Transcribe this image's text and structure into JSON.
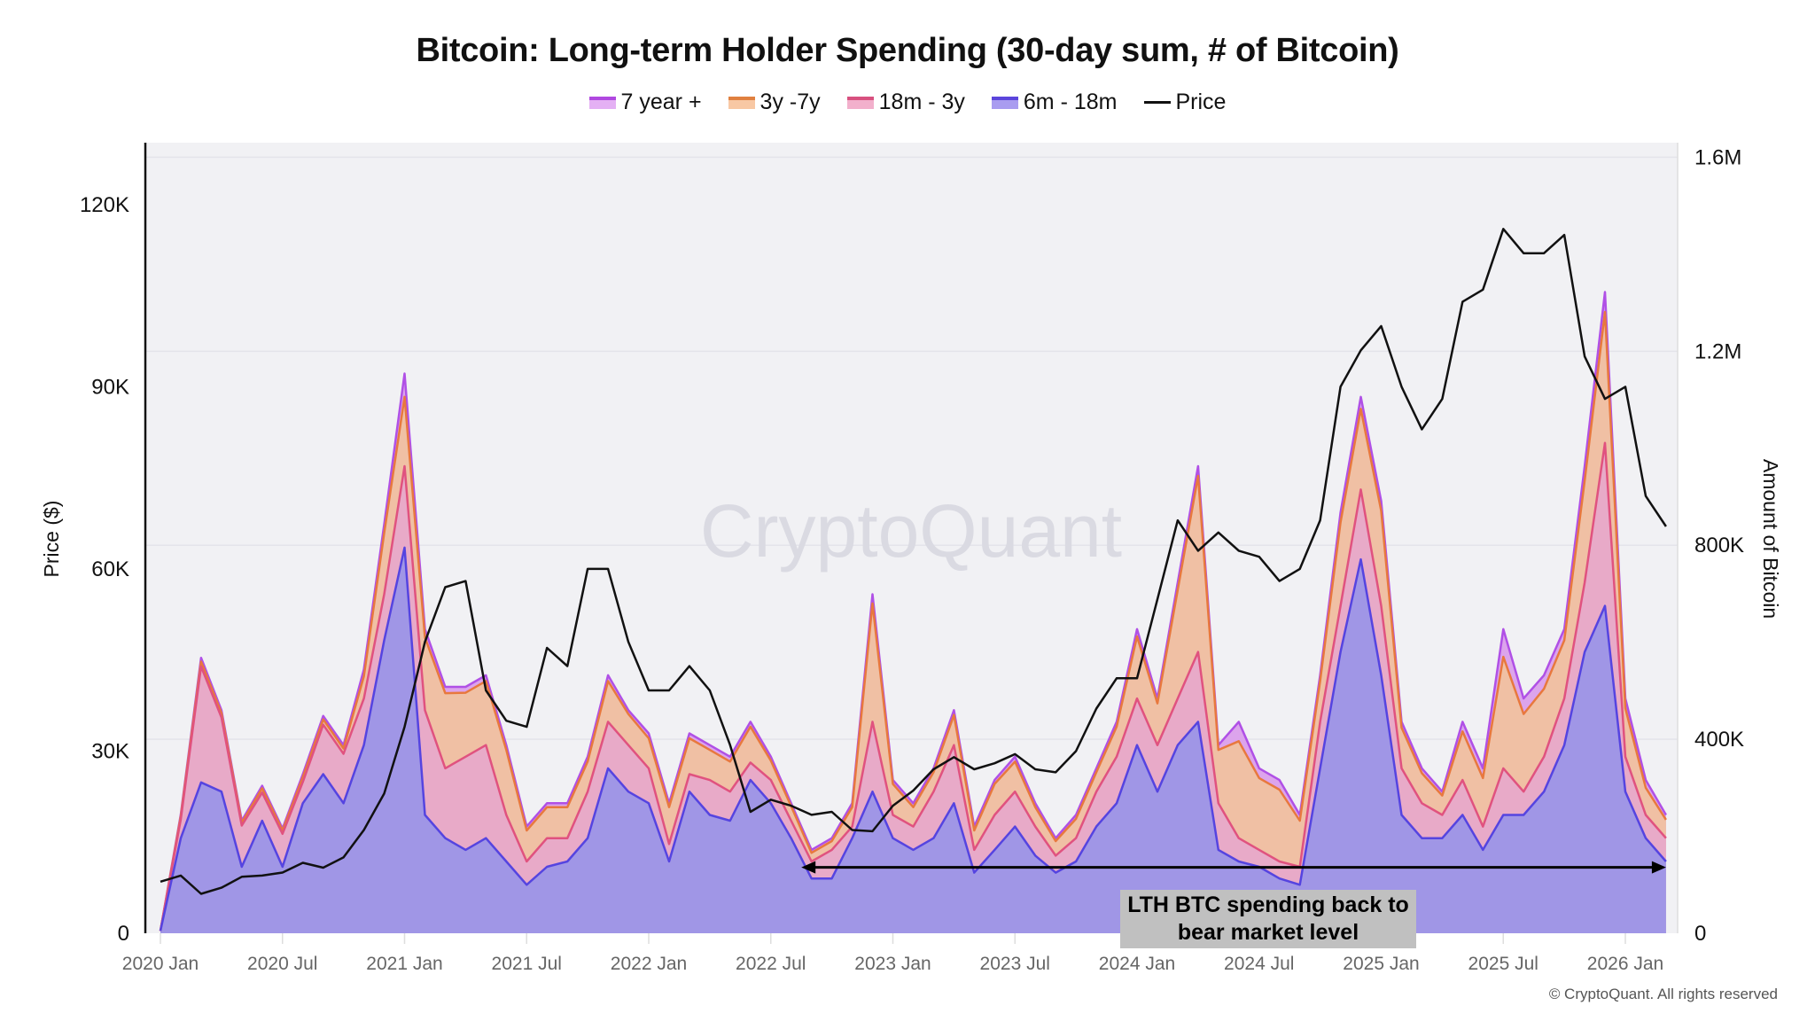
{
  "chart_data": {
    "type": "area",
    "title": "Bitcoin: Long-term Holder Spending (30-day sum, # of Bitcoin)",
    "x_start": "2020-01",
    "x_interval": "month",
    "x_ticks": [
      {
        "label": "2020 Jan",
        "month": 0
      },
      {
        "label": "2020 Jul",
        "month": 6
      },
      {
        "label": "2021 Jan",
        "month": 12
      },
      {
        "label": "2021 Jul",
        "month": 18
      },
      {
        "label": "2022 Jan",
        "month": 24
      },
      {
        "label": "2022 Jul",
        "month": 30
      },
      {
        "label": "2023 Jan",
        "month": 36
      },
      {
        "label": "2023 Jul",
        "month": 42
      },
      {
        "label": "2024 Jan",
        "month": 48
      },
      {
        "label": "2024 Jul",
        "month": 54
      },
      {
        "label": "2025 Jan",
        "month": 60
      },
      {
        "label": "2025 Jul",
        "month": 66
      },
      {
        "label": "2026 Jan",
        "month": 72
      }
    ],
    "ylabel_left": "Price ($)",
    "ylim_left": [
      0,
      130200
    ],
    "yticks_left": [
      {
        "value": 0,
        "label": "0"
      },
      {
        "value": 30000,
        "label": "30K"
      },
      {
        "value": 60000,
        "label": "60K"
      },
      {
        "value": 90000,
        "label": "90K"
      },
      {
        "value": 120000,
        "label": "120K"
      }
    ],
    "ylabel_right": "Amount of Bitcoin",
    "ylim_right_thousands": [
      0,
      1630
    ],
    "yticks_right": [
      {
        "value": 0,
        "label": "0"
      },
      {
        "value": 400,
        "label": "400K"
      },
      {
        "value": 800,
        "label": "800K"
      },
      {
        "value": 1200,
        "label": "1.2M"
      },
      {
        "value": 1600,
        "label": "1.6M"
      }
    ],
    "grid": true,
    "legend_position": "top-center",
    "stacked_series_thousands_btc": [
      {
        "name": "6m - 18m",
        "fill": "#a096e6",
        "line": "#5544e0",
        "swatch_top": "#5b45dc",
        "swatch_fill": "#a99cf0",
        "values": [
          5,
          196,
          311,
          292,
          137,
          232,
          137,
          268,
          328,
          268,
          388,
          604,
          795,
          244,
          196,
          172,
          196,
          148,
          100,
          137,
          148,
          196,
          340,
          292,
          268,
          148,
          292,
          244,
          232,
          316,
          268,
          196,
          113,
          113,
          196,
          292,
          196,
          172,
          196,
          268,
          125,
          172,
          220,
          160,
          125,
          148,
          220,
          268,
          388,
          292,
          388,
          436,
          172,
          148,
          137,
          113,
          100,
          340,
          580,
          771,
          532,
          244,
          196,
          196,
          244,
          172,
          244,
          244,
          292,
          388,
          580,
          675,
          292,
          196,
          148
        ]
      },
      {
        "name": "18m - 3y",
        "fill": "#e8aac8",
        "line": "#e0527f",
        "swatch_top": "#d8507f",
        "swatch_fill": "#f2b0cc",
        "values": [
          0,
          39,
          239,
          153,
          85,
          58,
          68,
          44,
          102,
          102,
          96,
          95,
          168,
          216,
          144,
          192,
          192,
          96,
          48,
          59,
          48,
          96,
          96,
          96,
          72,
          36,
          36,
          72,
          60,
          36,
          48,
          36,
          35,
          59,
          24,
          144,
          48,
          48,
          96,
          120,
          47,
          72,
          72,
          60,
          35,
          48,
          72,
          96,
          96,
          96,
          96,
          144,
          96,
          48,
          35,
          35,
          37,
          96,
          95,
          144,
          143,
          96,
          72,
          48,
          72,
          48,
          96,
          48,
          72,
          96,
          143,
          336,
          72,
          48,
          48
        ]
      },
      {
        "name": "3y -7y",
        "fill": "#f0c0a4",
        "line": "#e8783e",
        "swatch_top": "#e08040",
        "swatch_fill": "#f8c8a4",
        "values": [
          0,
          6,
          10,
          9,
          6,
          9,
          7,
          10,
          11,
          11,
          46,
          126,
          143,
          150,
          155,
          132,
          132,
          134,
          64,
          64,
          64,
          62,
          84,
          64,
          62,
          76,
          74,
          62,
          62,
          74,
          40,
          30,
          18,
          18,
          40,
          244,
          64,
          40,
          40,
          62,
          40,
          64,
          62,
          40,
          30,
          40,
          40,
          62,
          128,
          86,
          224,
          363,
          110,
          200,
          148,
          148,
          95,
          84,
          172,
          166,
          196,
          84,
          62,
          40,
          100,
          100,
          230,
          160,
          140,
          120,
          210,
          270,
          100,
          56,
          38
        ]
      },
      {
        "name": "7 year +",
        "fill": "#dca4ec",
        "line": "#b050e6",
        "swatch_top": "#b048e0",
        "swatch_fill": "#e4b0f4",
        "values": [
          0,
          4,
          8,
          6,
          4,
          5,
          4,
          6,
          7,
          7,
          14,
          18,
          48,
          17,
          13,
          12,
          12,
          10,
          8,
          8,
          8,
          10,
          12,
          8,
          10,
          8,
          10,
          10,
          10,
          10,
          8,
          6,
          6,
          6,
          8,
          19,
          8,
          8,
          8,
          10,
          8,
          8,
          10,
          8,
          6,
          8,
          8,
          10,
          15,
          10,
          15,
          20,
          10,
          40,
          20,
          20,
          12,
          12,
          20,
          25,
          20,
          12,
          10,
          8,
          20,
          20,
          57,
          32,
          28,
          23,
          30,
          41,
          20,
          16,
          10
        ]
      }
    ],
    "price_series": {
      "name": "Price",
      "color": "#111111",
      "values": [
        8500,
        9500,
        6500,
        7500,
        9300,
        9500,
        10000,
        11600,
        10800,
        12500,
        17000,
        23000,
        34000,
        48000,
        57000,
        58000,
        40000,
        35000,
        34000,
        47000,
        44000,
        60000,
        60000,
        48000,
        40000,
        40000,
        44000,
        40000,
        31000,
        20000,
        22000,
        21000,
        19500,
        20000,
        17000,
        16800,
        21000,
        23500,
        27000,
        29000,
        27000,
        28000,
        29500,
        27000,
        26500,
        30000,
        37000,
        42000,
        42000,
        55000,
        68000,
        63000,
        66000,
        63000,
        62000,
        58000,
        60000,
        68000,
        90000,
        96000,
        100000,
        90000,
        83000,
        88000,
        104000,
        106000,
        116000,
        112000,
        112000,
        115000,
        95000,
        88000,
        90000,
        72000,
        67000
      ]
    },
    "legend_order": [
      "7 year +",
      "3y -7y",
      "18m - 3y",
      "6m - 18m",
      "Price"
    ],
    "annotation": {
      "text": "LTH BTC spending back to bear market level",
      "arrow_from_month": 31.5,
      "arrow_to_month": 74,
      "arrow_level_thousands": 136
    },
    "watermark": "CryptoQuant",
    "copyright": "© CryptoQuant. All rights reserved"
  }
}
